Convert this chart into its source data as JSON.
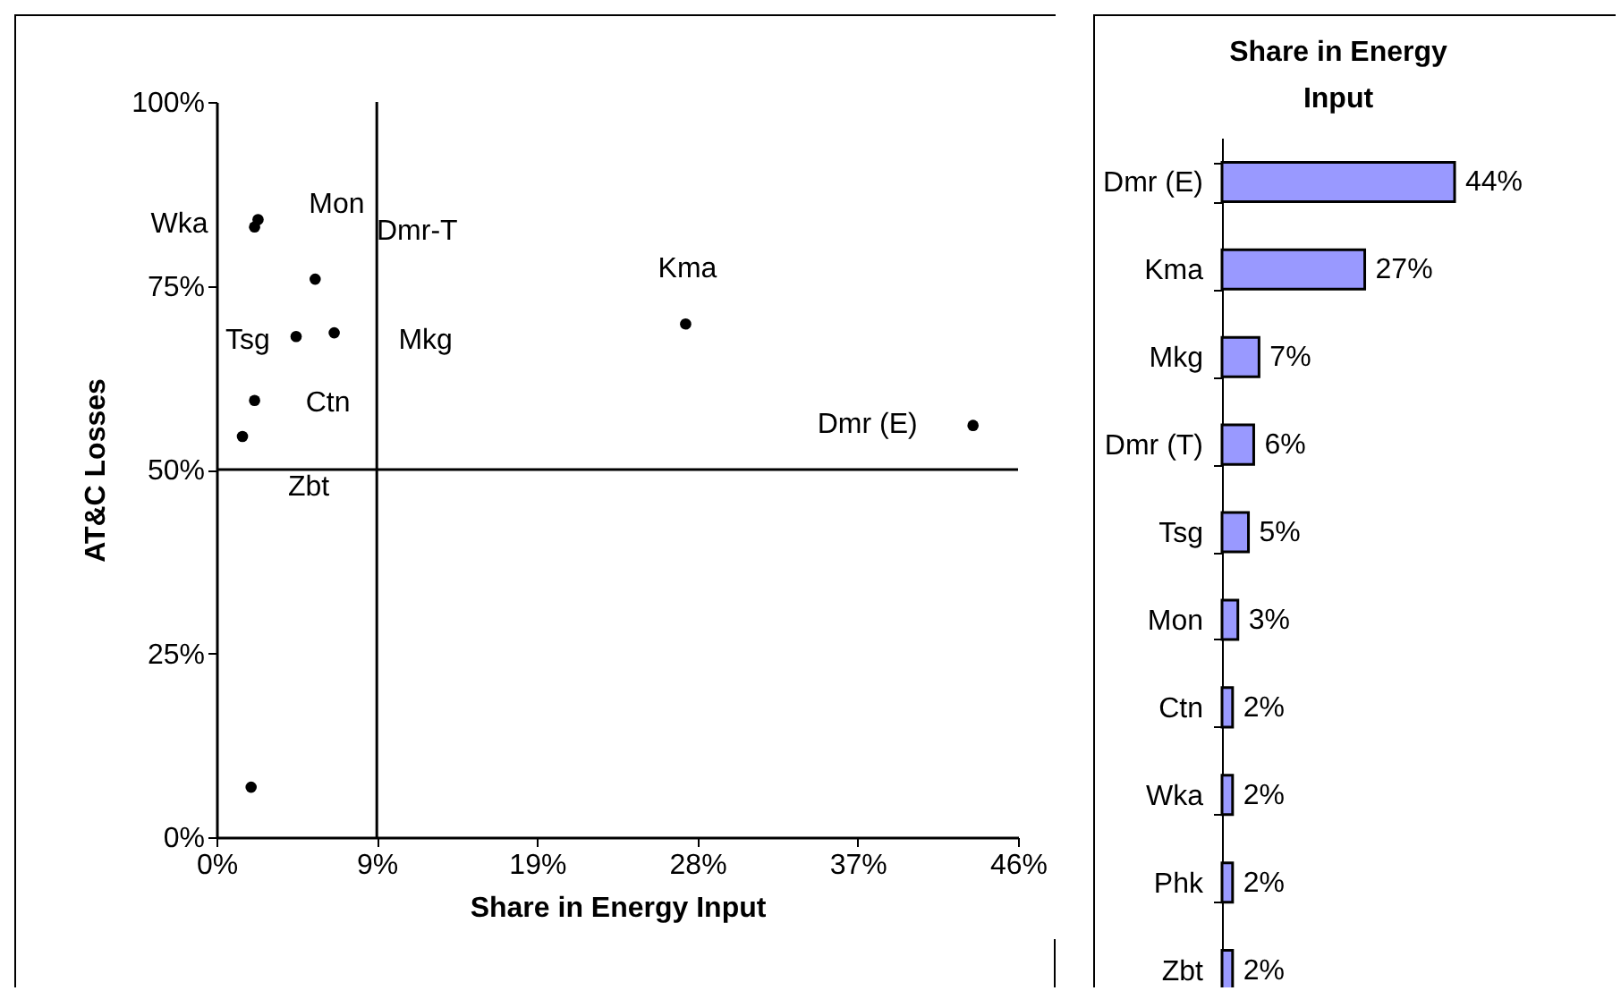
{
  "chart_data": [
    {
      "type": "scatter",
      "xlabel": "Share in Energy Input",
      "ylabel": "AT&C Losses",
      "x": [
        2.2,
        2.4,
        5.7,
        4.6,
        6.8,
        2.2,
        1.5,
        2.0,
        27.1,
        43.7
      ],
      "series": [
        {
          "color": "#000000",
          "values": [
            83,
            84,
            75.9,
            68.1,
            68.6,
            59.4,
            54.5,
            6.8,
            69.8,
            56
          ]
        }
      ],
      "xlim": [
        0,
        46.3
      ],
      "xticks": [
        {
          "value": 0,
          "label": "0%"
        },
        {
          "value": 9.26,
          "label": "9%"
        },
        {
          "value": 18.52,
          "label": "19%"
        },
        {
          "value": 27.78,
          "label": "28%"
        },
        {
          "value": 37.04,
          "label": "37%"
        },
        {
          "value": 46.3,
          "label": "46%"
        }
      ],
      "ylim": [
        0,
        100
      ],
      "yticks": [
        {
          "value": 0,
          "label": "0%"
        },
        {
          "value": 25,
          "label": "25%"
        },
        {
          "value": 50,
          "label": "50%"
        },
        {
          "value": 75,
          "label": "75%"
        },
        {
          "value": 100,
          "label": "100%"
        }
      ],
      "ref_lines": [
        {
          "axis": "x",
          "value": 9.26,
          "color": "#000000"
        },
        {
          "axis": "y",
          "value": 50,
          "color": "#000000"
        }
      ],
      "annotations": [
        {
          "text": "Wka",
          "x": 2.2,
          "y": 83
        },
        {
          "text": "Mon",
          "x": 2.4,
          "y": 84
        },
        {
          "text": "Dmr-T",
          "x": 5.7,
          "y": 75.9
        },
        {
          "text": "Tsg",
          "x": 4.6,
          "y": 68.1
        },
        {
          "text": "Mkg",
          "x": 6.8,
          "y": 68.6
        },
        {
          "text": "Ctn",
          "x": 2.2,
          "y": 59.4
        },
        {
          "text": "Zbt",
          "x": 1.5,
          "y": 54.5
        },
        {
          "text": "Kma",
          "x": 27.1,
          "y": 69.8
        },
        {
          "text": "Dmr (E)",
          "x": 43.7,
          "y": 56
        }
      ],
      "marker": "circle"
    },
    {
      "type": "bar",
      "orientation": "horizontal",
      "title": "Share in Energy Input",
      "categories": [
        "Dmr (E)",
        "Kma",
        "Mkg",
        "Dmr (T)",
        "Tsg",
        "Mon",
        "Ctn",
        "Wka",
        "Phk",
        "Zbt"
      ],
      "values": [
        44,
        27,
        7,
        6,
        5,
        3,
        2,
        2,
        2,
        2
      ],
      "value_labels": [
        "44%",
        "27%",
        "7%",
        "6%",
        "5%",
        "3%",
        "2%",
        "2%",
        "2%",
        "2%"
      ],
      "color": "#9999ff",
      "tick_labels": "y"
    }
  ]
}
